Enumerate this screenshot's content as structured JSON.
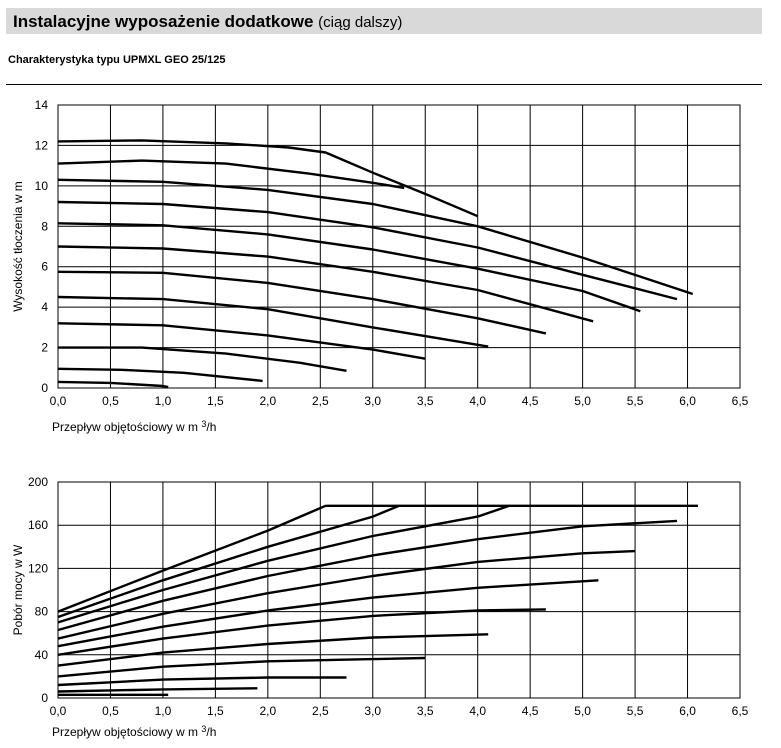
{
  "header": {
    "title": "Instalacyjne wyposażenie dodatkowe",
    "subtitle": "(ciąg dalszy)"
  },
  "section_title": "Charakterystyka typu UPMXL GEO 25/125",
  "chart_data": [
    {
      "type": "line",
      "xlabel": "Przepływ objętościowy w m",
      "xlabel_sup": "3",
      "xlabel_suffix": "/h",
      "ylabel": "Wysokość tłoczenia w m",
      "xlim": [
        0,
        6.5
      ],
      "ylim": [
        0,
        14
      ],
      "grid": true,
      "x_ticks": [
        "0,0",
        "0,5",
        "1,0",
        "1,5",
        "2,0",
        "2,5",
        "3,0",
        "3,5",
        "4,0",
        "4,5",
        "5,0",
        "5,5",
        "6,0",
        "6,5"
      ],
      "y_ticks": [
        "0",
        "2",
        "4",
        "6",
        "8",
        "10",
        "12",
        "14"
      ],
      "series": [
        {
          "points": [
            [
              0,
              0.3
            ],
            [
              0.5,
              0.25
            ],
            [
              1.0,
              0.1
            ],
            [
              1.05,
              0.05
            ]
          ]
        },
        {
          "points": [
            [
              0,
              0.95
            ],
            [
              0.6,
              0.9
            ],
            [
              1.2,
              0.75
            ],
            [
              1.95,
              0.35
            ]
          ]
        },
        {
          "points": [
            [
              0,
              2.0
            ],
            [
              0.8,
              2.0
            ],
            [
              1.6,
              1.7
            ],
            [
              2.3,
              1.25
            ],
            [
              2.75,
              0.85
            ]
          ]
        },
        {
          "points": [
            [
              0,
              3.2
            ],
            [
              1.0,
              3.1
            ],
            [
              2.0,
              2.6
            ],
            [
              3.0,
              1.9
            ],
            [
              3.5,
              1.45
            ]
          ]
        },
        {
          "points": [
            [
              0,
              4.5
            ],
            [
              1.0,
              4.4
            ],
            [
              2.0,
              3.9
            ],
            [
              3.0,
              3.0
            ],
            [
              4.1,
              2.05
            ]
          ]
        },
        {
          "points": [
            [
              0,
              5.75
            ],
            [
              1.0,
              5.7
            ],
            [
              2.0,
              5.2
            ],
            [
              3.0,
              4.4
            ],
            [
              4.0,
              3.45
            ],
            [
              4.65,
              2.7
            ]
          ]
        },
        {
          "points": [
            [
              0,
              7.0
            ],
            [
              1.0,
              6.9
            ],
            [
              2.0,
              6.5
            ],
            [
              3.0,
              5.75
            ],
            [
              4.0,
              4.85
            ],
            [
              5.1,
              3.3
            ]
          ]
        },
        {
          "points": [
            [
              0,
              8.15
            ],
            [
              1.0,
              8.05
            ],
            [
              2.0,
              7.6
            ],
            [
              3.0,
              6.85
            ],
            [
              4.0,
              5.9
            ],
            [
              5.0,
              4.8
            ],
            [
              5.55,
              3.8
            ]
          ]
        },
        {
          "points": [
            [
              0,
              9.2
            ],
            [
              1.0,
              9.1
            ],
            [
              2.0,
              8.7
            ],
            [
              3.0,
              7.95
            ],
            [
              4.0,
              6.95
            ],
            [
              5.0,
              5.6
            ],
            [
              5.9,
              4.4
            ]
          ]
        },
        {
          "points": [
            [
              0,
              10.3
            ],
            [
              1.0,
              10.2
            ],
            [
              2.0,
              9.8
            ],
            [
              3.0,
              9.1
            ],
            [
              4.0,
              8.0
            ],
            [
              5.0,
              6.45
            ],
            [
              6.05,
              4.65
            ]
          ]
        },
        {
          "points": [
            [
              0,
              11.1
            ],
            [
              0.8,
              11.25
            ],
            [
              1.6,
              11.1
            ],
            [
              2.4,
              10.6
            ],
            [
              3.0,
              10.15
            ],
            [
              3.3,
              9.9
            ]
          ]
        },
        {
          "points": [
            [
              0,
              12.2
            ],
            [
              0.8,
              12.25
            ],
            [
              1.6,
              12.1
            ],
            [
              2.2,
              11.9
            ],
            [
              2.55,
              11.65
            ],
            [
              3.0,
              10.65
            ],
            [
              3.5,
              9.6
            ],
            [
              4.0,
              8.5
            ]
          ]
        }
      ]
    },
    {
      "type": "line",
      "xlabel": "Przepływ objętościowy w m",
      "xlabel_sup": "3",
      "xlabel_suffix": "/h",
      "ylabel": "Pobór mocy w W",
      "xlim": [
        0,
        6.5
      ],
      "ylim": [
        0,
        200
      ],
      "grid": true,
      "x_ticks": [
        "0,0",
        "0,5",
        "1,0",
        "1,5",
        "2,0",
        "2,5",
        "3,0",
        "3,5",
        "4,0",
        "4,5",
        "5,0",
        "5,5",
        "6,0",
        "6,5"
      ],
      "y_ticks": [
        "0",
        "40",
        "80",
        "120",
        "160",
        "200"
      ],
      "series": [
        {
          "points": [
            [
              0,
              3
            ],
            [
              1.05,
              3
            ]
          ]
        },
        {
          "points": [
            [
              0,
              6
            ],
            [
              1.0,
              8
            ],
            [
              1.9,
              9
            ]
          ]
        },
        {
          "points": [
            [
              0,
              12
            ],
            [
              1.0,
              17
            ],
            [
              2.0,
              19
            ],
            [
              2.75,
              19
            ]
          ]
        },
        {
          "points": [
            [
              0,
              20
            ],
            [
              1.0,
              29
            ],
            [
              2.0,
              34
            ],
            [
              3.0,
              36
            ],
            [
              3.5,
              37
            ]
          ]
        },
        {
          "points": [
            [
              0,
              30
            ],
            [
              1.0,
              42
            ],
            [
              2.0,
              50
            ],
            [
              3.0,
              56
            ],
            [
              4.1,
              59
            ]
          ]
        },
        {
          "points": [
            [
              0,
              40
            ],
            [
              1.0,
              55
            ],
            [
              2.0,
              67
            ],
            [
              3.0,
              76
            ],
            [
              4.0,
              81
            ],
            [
              4.65,
              82
            ]
          ]
        },
        {
          "points": [
            [
              0,
              48
            ],
            [
              1.0,
              66
            ],
            [
              2.0,
              81
            ],
            [
              3.0,
              93
            ],
            [
              4.0,
              102
            ],
            [
              5.15,
              109
            ]
          ]
        },
        {
          "points": [
            [
              0,
              55
            ],
            [
              1.0,
              78
            ],
            [
              2.0,
              97
            ],
            [
              3.0,
              113
            ],
            [
              4.0,
              126
            ],
            [
              5.0,
              134
            ],
            [
              5.5,
              136
            ]
          ]
        },
        {
          "points": [
            [
              0,
              63
            ],
            [
              1.0,
              90
            ],
            [
              2.0,
              113
            ],
            [
              3.0,
              132
            ],
            [
              4.0,
              147
            ],
            [
              5.0,
              159
            ],
            [
              5.9,
              164
            ]
          ]
        },
        {
          "points": [
            [
              0,
              70
            ],
            [
              1.0,
              100
            ],
            [
              2.0,
              127
            ],
            [
              3.0,
              150
            ],
            [
              4.0,
              168
            ],
            [
              4.3,
              178
            ],
            [
              6.1,
              178
            ]
          ]
        },
        {
          "points": [
            [
              0,
              75
            ],
            [
              1.0,
              109
            ],
            [
              2.0,
              140
            ],
            [
              3.0,
              168
            ],
            [
              3.25,
              178
            ],
            [
              4.3,
              178
            ]
          ]
        },
        {
          "points": [
            [
              0,
              80
            ],
            [
              1.0,
              118
            ],
            [
              2.0,
              155
            ],
            [
              2.55,
              178
            ],
            [
              3.25,
              178
            ]
          ]
        }
      ]
    }
  ]
}
